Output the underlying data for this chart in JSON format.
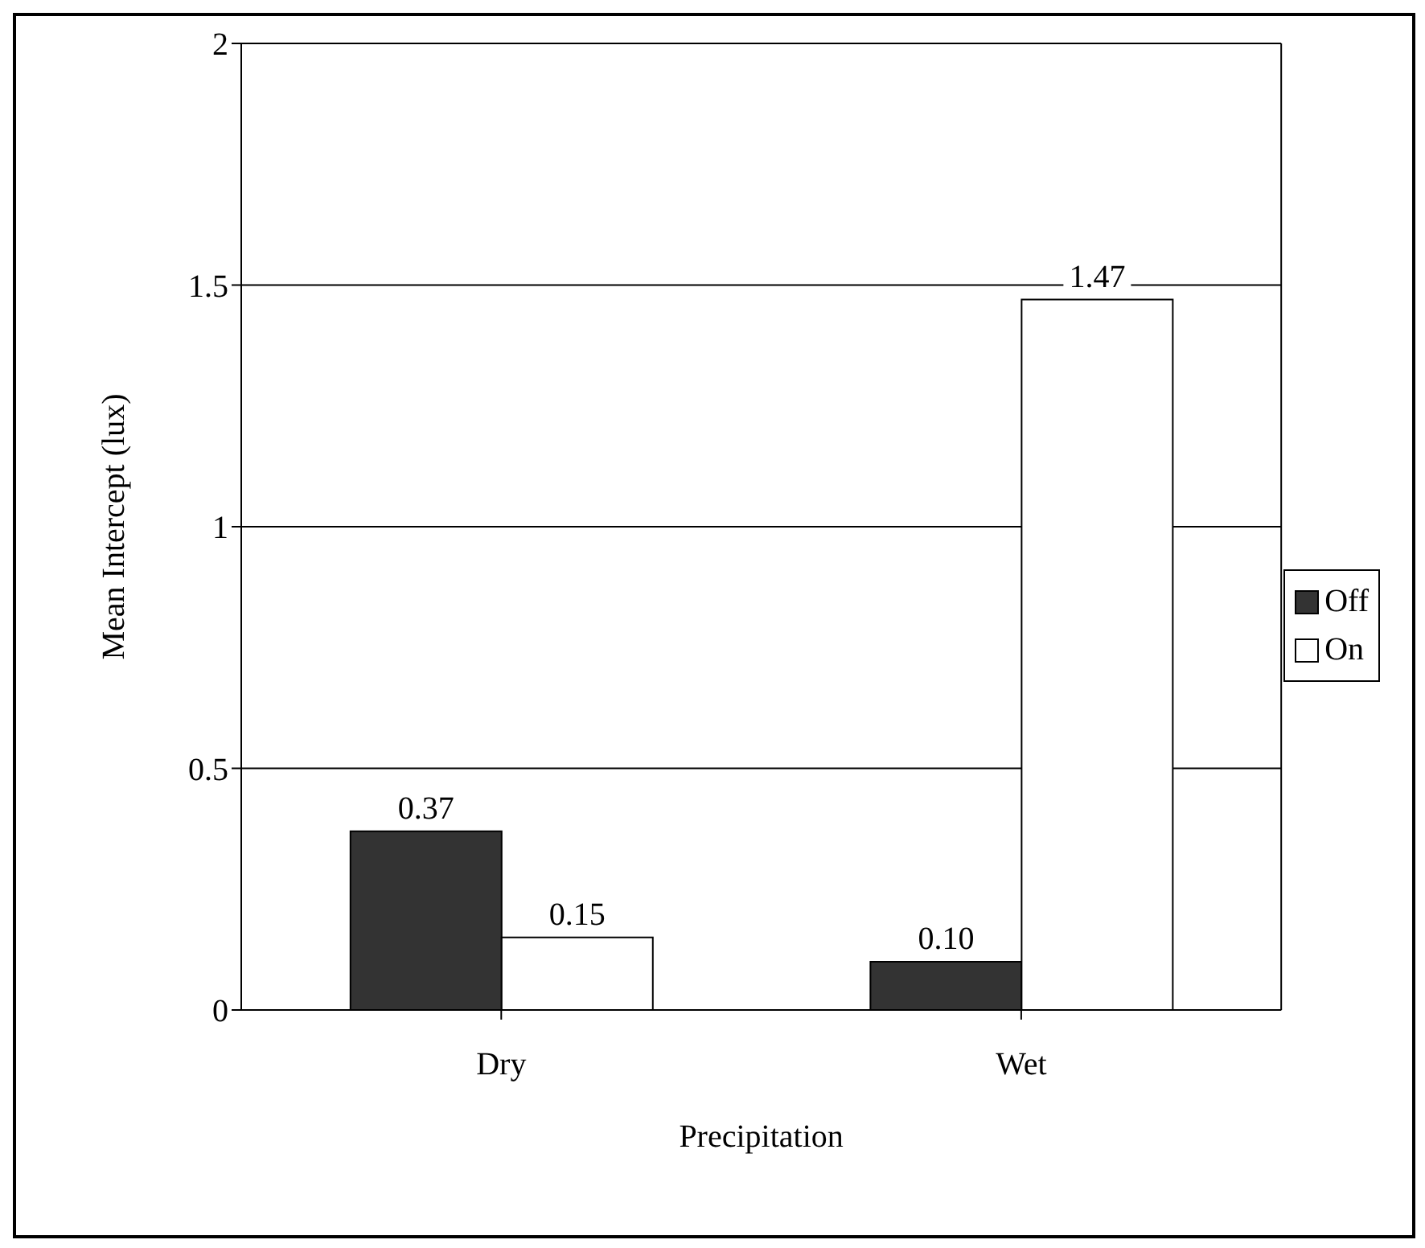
{
  "chart_data": {
    "type": "bar",
    "xlabel": "Precipitation",
    "ylabel": "Mean Intercept (lux)",
    "categories": [
      "Dry",
      "Wet"
    ],
    "series": [
      {
        "name": "Off",
        "color": "#333333",
        "values": [
          0.37,
          0.1
        ],
        "value_labels": [
          "0.37",
          "0.10"
        ]
      },
      {
        "name": "On",
        "color": "#ffffff",
        "values": [
          0.15,
          1.47
        ],
        "value_labels": [
          "0.15",
          "1.47"
        ]
      }
    ],
    "ylim": [
      0,
      2
    ],
    "yticks": [
      0,
      0.5,
      1,
      1.5,
      2
    ],
    "grid": "y",
    "legend": "right"
  }
}
